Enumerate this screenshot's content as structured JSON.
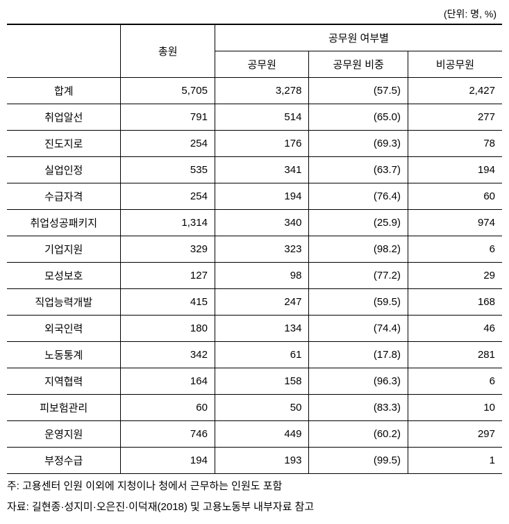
{
  "unit_label": "(단위: 명, %)",
  "headers": {
    "col1": "",
    "total": "총원",
    "group": "공무원 여부별",
    "civil": "공무원",
    "civil_ratio": "공무원 비중",
    "non_civil": "비공무원"
  },
  "rows": [
    {
      "label": "합계",
      "total": "5,705",
      "civil": "3,278",
      "ratio": "(57.5)",
      "non_civil": "2,427"
    },
    {
      "label": "취업알선",
      "total": "791",
      "civil": "514",
      "ratio": "(65.0)",
      "non_civil": "277"
    },
    {
      "label": "진도지로",
      "total": "254",
      "civil": "176",
      "ratio": "(69.3)",
      "non_civil": "78"
    },
    {
      "label": "실업인정",
      "total": "535",
      "civil": "341",
      "ratio": "(63.7)",
      "non_civil": "194"
    },
    {
      "label": "수급자격",
      "total": "254",
      "civil": "194",
      "ratio": "(76.4)",
      "non_civil": "60"
    },
    {
      "label": "취업성공패키지",
      "total": "1,314",
      "civil": "340",
      "ratio": "(25.9)",
      "non_civil": "974"
    },
    {
      "label": "기업지원",
      "total": "329",
      "civil": "323",
      "ratio": "(98.2)",
      "non_civil": "6"
    },
    {
      "label": "모성보호",
      "total": "127",
      "civil": "98",
      "ratio": "(77.2)",
      "non_civil": "29"
    },
    {
      "label": "직업능력개발",
      "total": "415",
      "civil": "247",
      "ratio": "(59.5)",
      "non_civil": "168"
    },
    {
      "label": "외국인력",
      "total": "180",
      "civil": "134",
      "ratio": "(74.4)",
      "non_civil": "46"
    },
    {
      "label": "노동통계",
      "total": "342",
      "civil": "61",
      "ratio": "(17.8)",
      "non_civil": "281"
    },
    {
      "label": "지역협력",
      "total": "164",
      "civil": "158",
      "ratio": "(96.3)",
      "non_civil": "6"
    },
    {
      "label": "피보험관리",
      "total": "60",
      "civil": "50",
      "ratio": "(83.3)",
      "non_civil": "10"
    },
    {
      "label": "운영지원",
      "total": "746",
      "civil": "449",
      "ratio": "(60.2)",
      "non_civil": "297"
    },
    {
      "label": "부정수급",
      "total": "194",
      "civil": "193",
      "ratio": "(99.5)",
      "non_civil": "1"
    }
  ],
  "footnotes": {
    "note1": "주: 고용센터 인원 이외에 지청이나 청에서 근무하는 인원도 포함",
    "note2": "자료: 길현종·성지미·오은진·이덕재(2018) 및 고용노동부 내부자료 참고"
  },
  "column_widths": {
    "label": "23%",
    "total": "19%",
    "civil": "19%",
    "ratio": "20%",
    "non_civil": "19%"
  }
}
